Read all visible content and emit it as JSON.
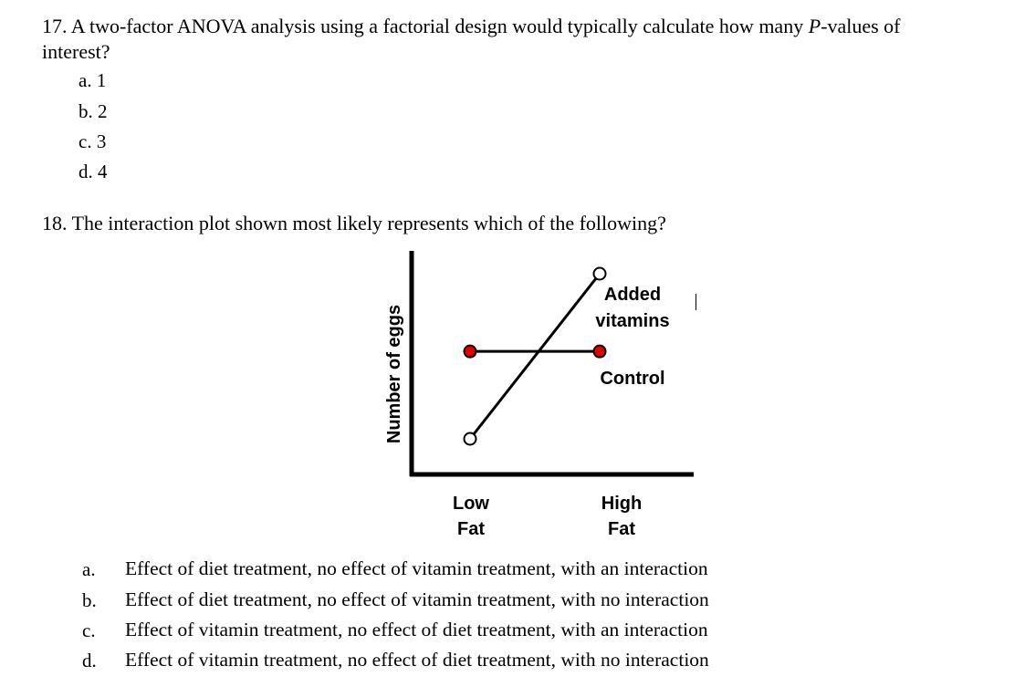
{
  "q17": {
    "line1_prefix": "17. A two-factor ANOVA analysis using a factorial design would typically calculate how many ",
    "line1_italic": "P",
    "line1_suffix": "-values of",
    "line2": "interest?",
    "choices": [
      "a. 1",
      "b. 2",
      "c. 3",
      "d. 4"
    ]
  },
  "q18": {
    "prompt": "18. The interaction plot shown most likely represents which of the following?",
    "choices": [
      {
        "letter": "a.",
        "text": "Effect of diet treatment, no effect of vitamin treatment, with an interaction"
      },
      {
        "letter": "b.",
        "text": "Effect of diet treatment, no effect of vitamin treatment, with no interaction"
      },
      {
        "letter": "c.",
        "text": "Effect of vitamin treatment, no effect of diet treatment, with an interaction"
      },
      {
        "letter": "d.",
        "text": "Effect of vitamin treatment, no effect of diet treatment, with no interaction"
      }
    ]
  },
  "chart_data": {
    "type": "line",
    "categories": [
      "Low Fat",
      "High Fat"
    ],
    "ylabel": "Number of eggs",
    "xtick_labels": [
      [
        "Low",
        "Fat"
      ],
      [
        "High",
        "Fat"
      ]
    ],
    "series": [
      {
        "name": "Added vitamins",
        "name_lines": [
          "Added",
          "vitamins"
        ],
        "values": [
          0.15,
          1.0
        ],
        "marker_fill": "#ffffff"
      },
      {
        "name": "Control",
        "name_lines": [
          "Control"
        ],
        "values": [
          0.6,
          0.6
        ],
        "marker_fill": "#e00000"
      }
    ],
    "ylim": [
      0,
      1.05
    ],
    "grid": false
  }
}
